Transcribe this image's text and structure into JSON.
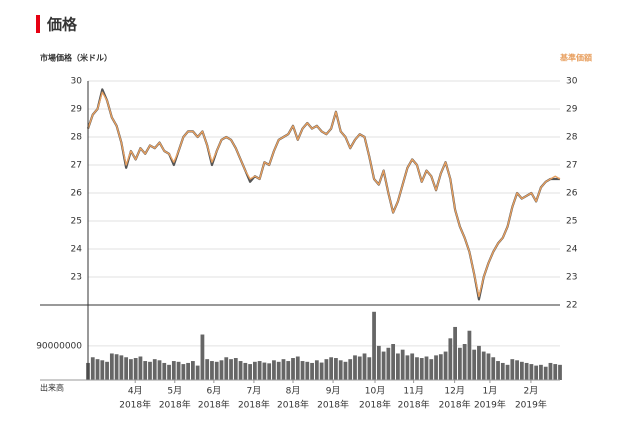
{
  "chart_data": {
    "type": "line",
    "title": "価格",
    "xlim": [
      0,
      99
    ],
    "xticks": [
      {
        "value": 9.9,
        "label": "4月"
      },
      {
        "value": 18.2,
        "label": "5月"
      },
      {
        "value": 26.4,
        "label": "6月"
      },
      {
        "value": 34.8,
        "label": "7月"
      },
      {
        "value": 43,
        "label": "8月"
      },
      {
        "value": 51.4,
        "label": "9月"
      },
      {
        "value": 60.2,
        "label": "10月"
      },
      {
        "value": 68.3,
        "label": "11月"
      },
      {
        "value": 76.9,
        "label": "12月"
      },
      {
        "value": 84.3,
        "label": "1月"
      },
      {
        "value": 92.9,
        "label": "2月"
      }
    ],
    "xtick_years": [
      "2018年",
      "2018年",
      "2018年",
      "2018年",
      "2018年",
      "2018年",
      "2018年",
      "2018年",
      "2018年",
      "2019年",
      "2019年"
    ],
    "ylim": [
      22,
      30
    ],
    "yticks": [
      23,
      24,
      25,
      26,
      27,
      28,
      29,
      30
    ],
    "y2lim": [
      22,
      30
    ],
    "y2ticks": [
      22,
      23,
      24,
      25,
      26,
      27,
      28,
      29,
      30
    ],
    "grid": true,
    "series": [
      {
        "name": "市場価格（米ドル）",
        "color": "#555555",
        "values": [
          28.3,
          28.8,
          29.0,
          29.7,
          29.3,
          28.7,
          28.4,
          27.8,
          26.9,
          27.5,
          27.2,
          27.6,
          27.4,
          27.7,
          27.6,
          27.8,
          27.5,
          27.4,
          27.0,
          27.5,
          28.0,
          28.2,
          28.2,
          28.0,
          28.2,
          27.7,
          27.0,
          27.5,
          27.9,
          28.0,
          27.9,
          27.6,
          27.2,
          26.8,
          26.4,
          26.6,
          26.5,
          27.1,
          27.0,
          27.5,
          27.9,
          28.0,
          28.1,
          28.4,
          27.9,
          28.3,
          28.5,
          28.3,
          28.4,
          28.2,
          28.1,
          28.3,
          28.9,
          28.2,
          28.0,
          27.6,
          27.9,
          28.1,
          28.0,
          27.3,
          26.5,
          26.3,
          26.8,
          26.0,
          25.3,
          25.7,
          26.3,
          26.9,
          27.2,
          27.0,
          26.4,
          26.8,
          26.6,
          26.1,
          26.7,
          27.1,
          26.5,
          25.4,
          24.8,
          24.4,
          23.9,
          23.1,
          22.2,
          23.0,
          23.5,
          23.9,
          24.2,
          24.4,
          24.8,
          25.5,
          26.0,
          25.8,
          25.9,
          26.0,
          25.7,
          26.2,
          26.4,
          26.5,
          26.5,
          26.5
        ]
      },
      {
        "name": "基準価額",
        "color": "#e8a060",
        "axis": "y2",
        "values": [
          28.3,
          28.8,
          29.0,
          29.6,
          29.3,
          28.7,
          28.4,
          27.8,
          27.0,
          27.5,
          27.2,
          27.6,
          27.4,
          27.7,
          27.6,
          27.8,
          27.5,
          27.4,
          27.1,
          27.5,
          28.0,
          28.2,
          28.2,
          28.0,
          28.2,
          27.7,
          27.1,
          27.5,
          27.9,
          28.0,
          27.9,
          27.6,
          27.2,
          26.8,
          26.5,
          26.6,
          26.5,
          27.1,
          27.0,
          27.5,
          27.9,
          28.0,
          28.1,
          28.4,
          27.9,
          28.3,
          28.5,
          28.3,
          28.4,
          28.2,
          28.1,
          28.3,
          28.9,
          28.2,
          28.0,
          27.6,
          27.9,
          28.1,
          28.0,
          27.3,
          26.5,
          26.3,
          26.8,
          26.0,
          25.3,
          25.7,
          26.3,
          26.9,
          27.2,
          27.0,
          26.4,
          26.8,
          26.6,
          26.1,
          26.7,
          27.1,
          26.5,
          25.4,
          24.8,
          24.4,
          23.9,
          23.1,
          22.3,
          23.0,
          23.5,
          23.9,
          24.2,
          24.4,
          24.8,
          25.5,
          26.0,
          25.8,
          25.9,
          26.0,
          25.7,
          26.2,
          26.4,
          26.5,
          26.6,
          26.5
        ]
      }
    ],
    "volume": {
      "label": "出来高",
      "color": "#666666",
      "ylim": [
        0,
        190000000
      ],
      "yticks": [
        90000000
      ],
      "values": [
        45000000,
        60000000,
        55000000,
        52000000,
        48000000,
        70000000,
        68000000,
        65000000,
        60000000,
        55000000,
        58000000,
        62000000,
        50000000,
        48000000,
        55000000,
        52000000,
        45000000,
        40000000,
        50000000,
        48000000,
        42000000,
        45000000,
        50000000,
        38000000,
        120000000,
        55000000,
        50000000,
        48000000,
        52000000,
        60000000,
        55000000,
        58000000,
        50000000,
        45000000,
        42000000,
        48000000,
        50000000,
        46000000,
        44000000,
        52000000,
        48000000,
        55000000,
        50000000,
        58000000,
        62000000,
        50000000,
        48000000,
        45000000,
        52000000,
        46000000,
        55000000,
        60000000,
        58000000,
        52000000,
        48000000,
        55000000,
        65000000,
        62000000,
        70000000,
        60000000,
        180000000,
        90000000,
        75000000,
        85000000,
        95000000,
        70000000,
        80000000,
        65000000,
        70000000,
        60000000,
        58000000,
        62000000,
        55000000,
        65000000,
        68000000,
        75000000,
        110000000,
        140000000,
        85000000,
        95000000,
        130000000,
        80000000,
        90000000,
        75000000,
        70000000,
        60000000,
        50000000,
        45000000,
        40000000,
        55000000,
        52000000,
        48000000,
        45000000,
        42000000,
        38000000,
        40000000,
        35000000,
        45000000,
        42000000,
        40000000
      ]
    }
  }
}
